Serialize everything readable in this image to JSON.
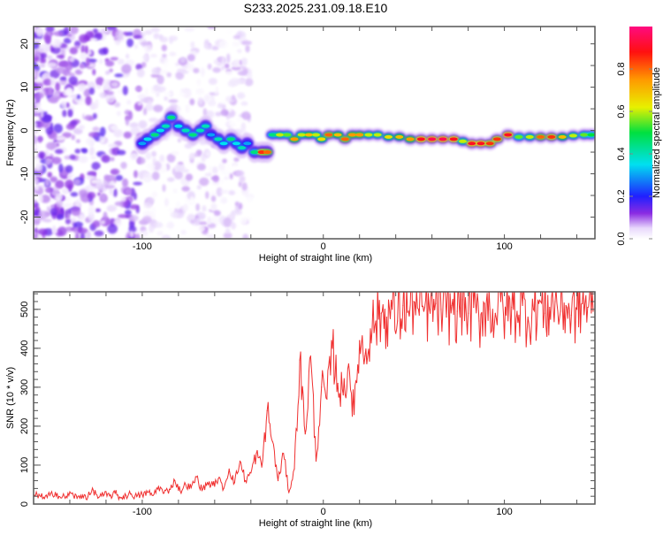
{
  "title": "S233.2025.231.09.18.E10",
  "colors": {
    "snr_line": "#f03030",
    "frame": "#666666"
  },
  "chart_data": [
    {
      "type": "heatmap",
      "xlabel": "Height of straight line (km)",
      "ylabel": "Frequency (Hz)",
      "xlim": [
        -160,
        150
      ],
      "ylim": [
        -25,
        24
      ],
      "xtick_labels": [
        "-100",
        "0",
        "100"
      ],
      "xtick_values": [
        -100,
        0,
        100
      ],
      "ytick_labels": [
        "20",
        "10",
        "0",
        "-10",
        "-20"
      ],
      "ytick_values": [
        20,
        10,
        0,
        -10,
        -20
      ],
      "colorbar": {
        "label": "Normalized spectral amplitude",
        "range": [
          0,
          1
        ],
        "tick_labels": [
          "0.0",
          "0.2",
          "0.4",
          "0.6",
          "0.8"
        ],
        "tick_values": [
          0,
          0.2,
          0.4,
          0.6,
          0.8
        ],
        "colormap": [
          [
            "0",
            "#ffffff"
          ],
          [
            "0.05",
            "#e8d8fc"
          ],
          [
            "0.12",
            "#8a2be2"
          ],
          [
            "0.2",
            "#2020ff"
          ],
          [
            "0.35",
            "#00e0f0"
          ],
          [
            "0.5",
            "#00e040"
          ],
          [
            "0.62",
            "#e8f000"
          ],
          [
            "0.75",
            "#ff9900"
          ],
          [
            "0.88",
            "#ff1010"
          ],
          [
            "1",
            "#ff0a80"
          ]
        ]
      },
      "ridge": [
        [
          -100,
          -3,
          0.3
        ],
        [
          -97,
          -2,
          0.35
        ],
        [
          -93,
          -1,
          0.45
        ],
        [
          -90,
          0,
          0.35
        ],
        [
          -87,
          1,
          0.4
        ],
        [
          -84,
          3,
          0.45
        ],
        [
          -80,
          1,
          0.35
        ],
        [
          -76,
          0,
          0.4
        ],
        [
          -72,
          -1,
          0.45
        ],
        [
          -68,
          0,
          0.4
        ],
        [
          -65,
          1,
          0.4
        ],
        [
          -62,
          -1,
          0.3
        ],
        [
          -58,
          -2,
          0.4
        ],
        [
          -55,
          -3,
          0.35
        ],
        [
          -51,
          -2,
          0.45
        ],
        [
          -48,
          -3,
          0.35
        ],
        [
          -45,
          -4,
          0.4
        ],
        [
          -42,
          -3,
          0.3
        ],
        [
          -38,
          -5,
          0.45
        ],
        [
          -34,
          -5,
          0.85
        ],
        [
          -31,
          -5,
          0.8
        ],
        [
          -28,
          -1,
          0.45
        ],
        [
          -24,
          -1,
          0.6
        ],
        [
          -20,
          -1,
          0.55
        ],
        [
          -16,
          -2,
          0.75
        ],
        [
          -12,
          -1,
          0.6
        ],
        [
          -8,
          -1,
          0.7
        ],
        [
          -4,
          -1,
          0.6
        ],
        [
          -1,
          -2,
          0.65
        ],
        [
          3,
          -1,
          0.8
        ],
        [
          8,
          -1,
          0.7
        ],
        [
          12,
          -2,
          0.8
        ],
        [
          16,
          -1,
          0.75
        ],
        [
          20,
          -1,
          0.75
        ],
        [
          25,
          -1,
          0.6
        ],
        [
          30,
          -1,
          0.6
        ],
        [
          36,
          -1.5,
          0.65
        ],
        [
          42,
          -1.5,
          0.7
        ],
        [
          48,
          -2,
          0.75
        ],
        [
          54,
          -2,
          0.9
        ],
        [
          60,
          -2,
          0.95
        ],
        [
          66,
          -2,
          0.95
        ],
        [
          72,
          -2,
          0.9
        ],
        [
          77,
          -2.5,
          0.6
        ],
        [
          82,
          -3,
          0.9
        ],
        [
          87,
          -3,
          0.9
        ],
        [
          92,
          -3,
          0.85
        ],
        [
          96,
          -2,
          0.85
        ],
        [
          102,
          -1,
          0.9
        ],
        [
          108,
          -1.5,
          0.55
        ],
        [
          114,
          -1.5,
          0.6
        ],
        [
          120,
          -1.5,
          0.8
        ],
        [
          126,
          -1.5,
          0.85
        ],
        [
          132,
          -1.5,
          0.7
        ],
        [
          138,
          -1.2,
          0.6
        ],
        [
          144,
          -1,
          0.55
        ],
        [
          148,
          -1,
          0.5
        ]
      ]
    },
    {
      "type": "line",
      "xlabel": "Height of straight line (km)",
      "ylabel": "SNR (10 * v/v)",
      "xlim": [
        -160,
        150
      ],
      "ylim": [
        0,
        545
      ],
      "xtick_labels": [
        "-100",
        "0",
        "100"
      ],
      "xtick_values": [
        -100,
        0,
        100
      ],
      "ytick_labels": [
        "0",
        "100",
        "200",
        "300",
        "400",
        "500"
      ],
      "ytick_values": [
        0,
        100,
        200,
        300,
        400,
        500
      ],
      "x_start": -160,
      "x_step": 3,
      "values": [
        18,
        25,
        14,
        22,
        30,
        16,
        20,
        27,
        15,
        23,
        19,
        35,
        17,
        24,
        21,
        28,
        16,
        22,
        26,
        19,
        24,
        30,
        22,
        45,
        28,
        38,
        60,
        33,
        50,
        42,
        70,
        35,
        55,
        48,
        65,
        40,
        90,
        55,
        110,
        60,
        80,
        130,
        95,
        240,
        160,
        60,
        130,
        30,
        90,
        370,
        180,
        380,
        110,
        300,
        270,
        400,
        310,
        280,
        360,
        230,
        420,
        380,
        450,
        470,
        490,
        480,
        500,
        470,
        510,
        495,
        520,
        485,
        505,
        490,
        515,
        500,
        480,
        510,
        495,
        525,
        490,
        505,
        470,
        515,
        500,
        490,
        520,
        485,
        505,
        495,
        510,
        480,
        500,
        515,
        490,
        505,
        520,
        495,
        510,
        485,
        500,
        515,
        505,
        495
      ]
    }
  ]
}
